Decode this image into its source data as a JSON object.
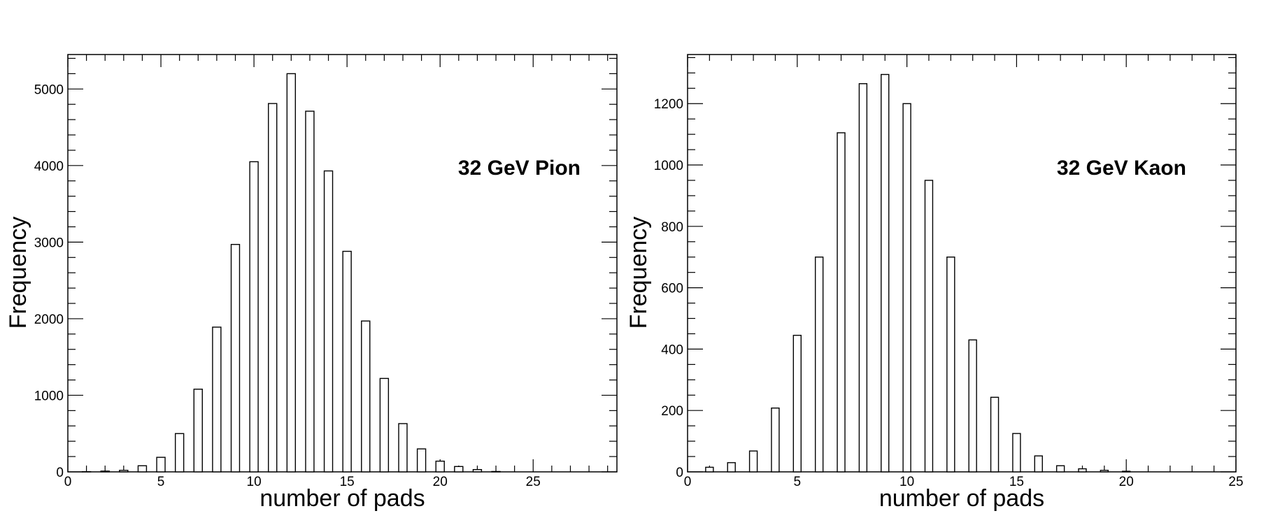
{
  "chart_data": [
    {
      "type": "bar",
      "annotation": "32 GeV Pion",
      "xlabel": "number of pads",
      "ylabel": "Frequency",
      "xlim": [
        0,
        29.5
      ],
      "ylim": [
        0,
        5450
      ],
      "xticks": [
        0,
        5,
        10,
        15,
        20,
        25
      ],
      "yticks": [
        0,
        1000,
        2000,
        3000,
        4000,
        5000
      ],
      "x_minor_step": 1,
      "y_minor_step": 200,
      "bin_width": 0.45,
      "x": [
        1,
        2,
        3,
        4,
        5,
        6,
        7,
        8,
        9,
        10,
        11,
        12,
        13,
        14,
        15,
        16,
        17,
        18,
        19,
        20,
        21,
        22,
        23
      ],
      "values": [
        2,
        10,
        20,
        80,
        190,
        500,
        1080,
        1890,
        2970,
        4050,
        4810,
        5200,
        4710,
        3930,
        2880,
        1970,
        1220,
        630,
        300,
        140,
        70,
        30,
        5
      ],
      "grid": false,
      "legend": "none"
    },
    {
      "type": "bar",
      "annotation": "32 GeV Kaon",
      "xlabel": "number of pads",
      "ylabel": "Frequency",
      "xlim": [
        0,
        25
      ],
      "ylim": [
        0,
        1360
      ],
      "xticks": [
        0,
        5,
        10,
        15,
        20,
        25
      ],
      "yticks": [
        0,
        200,
        400,
        600,
        800,
        1000,
        1200
      ],
      "x_minor_step": 1,
      "y_minor_step": 50,
      "bin_width": 0.35,
      "x": [
        1,
        2,
        3,
        4,
        5,
        6,
        7,
        8,
        9,
        10,
        11,
        12,
        13,
        14,
        15,
        16,
        17,
        18,
        19,
        20
      ],
      "values": [
        15,
        30,
        68,
        208,
        445,
        700,
        1105,
        1265,
        1295,
        1200,
        950,
        700,
        430,
        243,
        125,
        52,
        20,
        10,
        5,
        2
      ],
      "grid": false,
      "legend": "none"
    }
  ]
}
